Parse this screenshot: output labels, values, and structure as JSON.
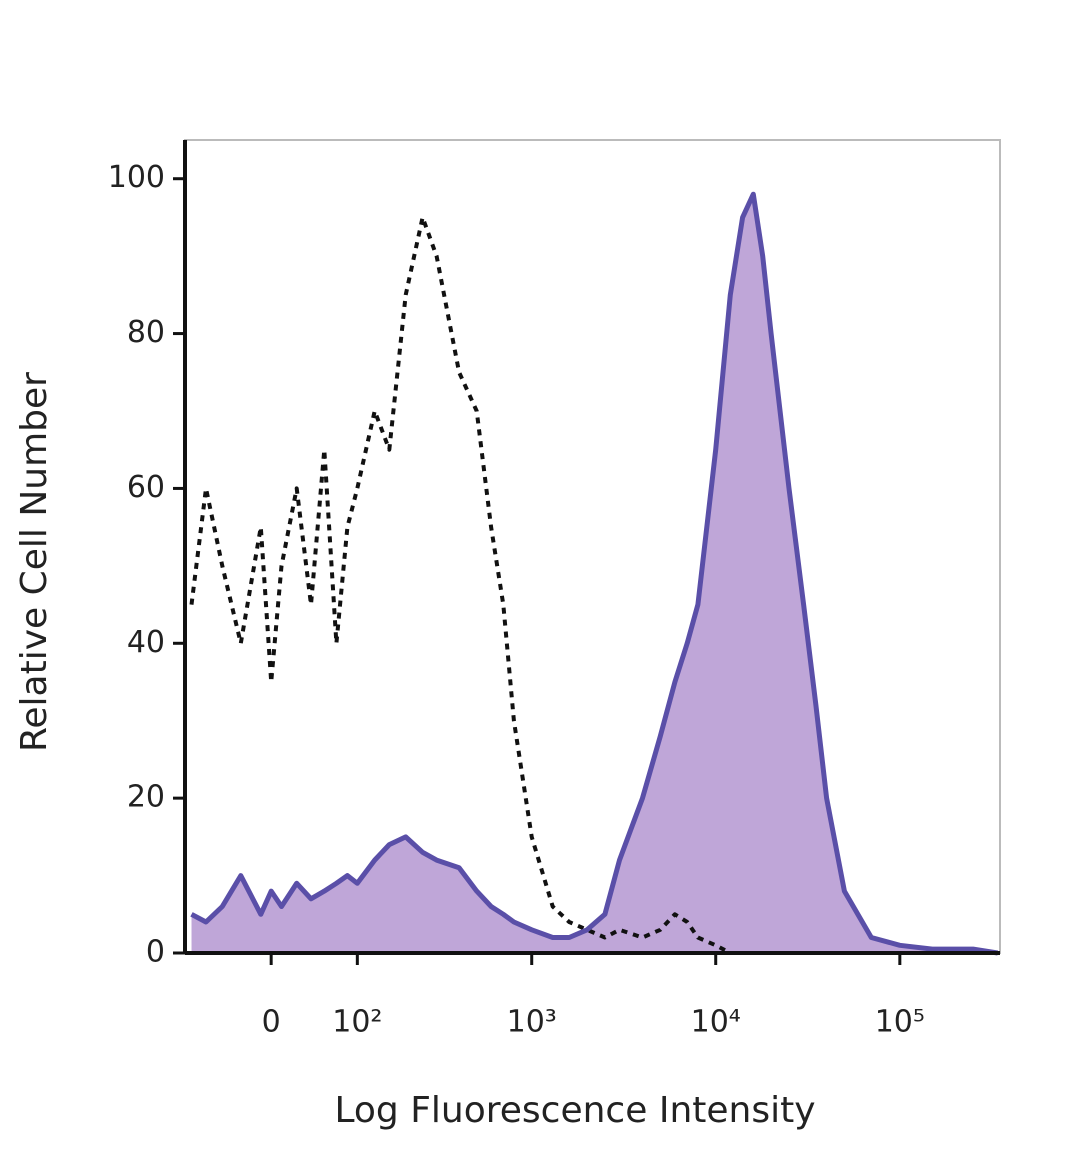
{
  "chart_data": {
    "type": "histogram-overlay",
    "x_label": "Log Fluorescence Intensity",
    "y_label": "Relative Cell Number",
    "x_scale": "arcsinh",
    "x_cofactor": 77,
    "xlim": [
      -100,
      350000
    ],
    "xticks": [
      0,
      {
        "value": 100,
        "label": "10²"
      },
      {
        "value": 1000,
        "label": "10³"
      },
      {
        "value": 10000,
        "label": "10⁴"
      },
      {
        "value": 100000,
        "label": "10⁵"
      }
    ],
    "ylim": [
      0,
      105
    ],
    "yticks": [
      0,
      20,
      40,
      60,
      80,
      100
    ],
    "x": [
      -90,
      -70,
      -50,
      -30,
      -10,
      0,
      10,
      25,
      40,
      55,
      70,
      85,
      100,
      130,
      160,
      200,
      250,
      300,
      400,
      500,
      600,
      700,
      800,
      1000,
      1300,
      1600,
      2000,
      2500,
      3000,
      4000,
      5000,
      6000,
      7000,
      8000,
      10000,
      12000,
      14000,
      16000,
      18000,
      20000,
      25000,
      30000,
      35000,
      40000,
      50000,
      70000,
      100000,
      150000,
      250000,
      340000
    ],
    "series": [
      {
        "color": "#111111",
        "style": "dotted",
        "filled": false,
        "values": [
          45,
          60,
          50,
          40,
          55,
          35,
          50,
          60,
          45,
          65,
          40,
          55,
          60,
          70,
          65,
          85,
          95,
          90,
          75,
          70,
          55,
          45,
          30,
          15,
          6,
          4,
          3,
          2,
          3,
          2,
          3,
          5,
          4,
          2,
          1,
          0,
          0,
          0,
          0,
          0,
          0,
          0,
          0,
          0,
          0,
          0,
          0,
          0,
          0,
          0
        ]
      },
      {
        "color": "#5a4fa8",
        "fill_color": "#bfa6d8",
        "style": "solid",
        "filled": true,
        "values": [
          5,
          4,
          6,
          10,
          5,
          8,
          6,
          9,
          7,
          8,
          9,
          10,
          9,
          12,
          14,
          15,
          13,
          12,
          11,
          8,
          6,
          5,
          4,
          3,
          2,
          2,
          3,
          5,
          12,
          20,
          28,
          35,
          40,
          45,
          65,
          85,
          95,
          98,
          90,
          80,
          60,
          45,
          32,
          20,
          8,
          2,
          1,
          0.5,
          0.5,
          0
        ]
      }
    ]
  }
}
